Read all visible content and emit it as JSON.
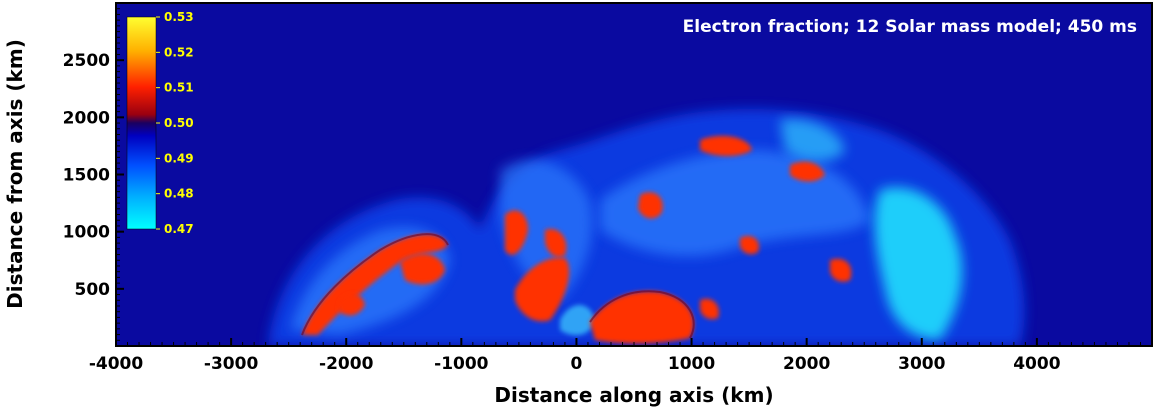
{
  "title": "Electron fraction; 12 Solar mass model; 450 ms",
  "x_axis": {
    "label": "Distance along axis (km)",
    "range": [
      -4000,
      5000
    ],
    "ticks": [
      "-4000",
      "-3000",
      "-2000",
      "-1000",
      "0",
      "1000",
      "2000",
      "3000",
      "4000"
    ]
  },
  "y_axis": {
    "label": "Distance from axis (km)",
    "range": [
      0,
      3000
    ],
    "ticks": [
      "500",
      "1000",
      "1500",
      "2000",
      "2500"
    ]
  },
  "colorbar": {
    "labels": [
      "0.53",
      "0.52",
      "0.51",
      "0.50",
      "0.49",
      "0.48",
      "0.47"
    ],
    "range": [
      0.47,
      0.53
    ],
    "label_color": "#ffff00"
  },
  "colors": {
    "background_field": "#0a0a9e",
    "low_ye": "#00ffff",
    "high_ye": "#ff2a00"
  }
}
